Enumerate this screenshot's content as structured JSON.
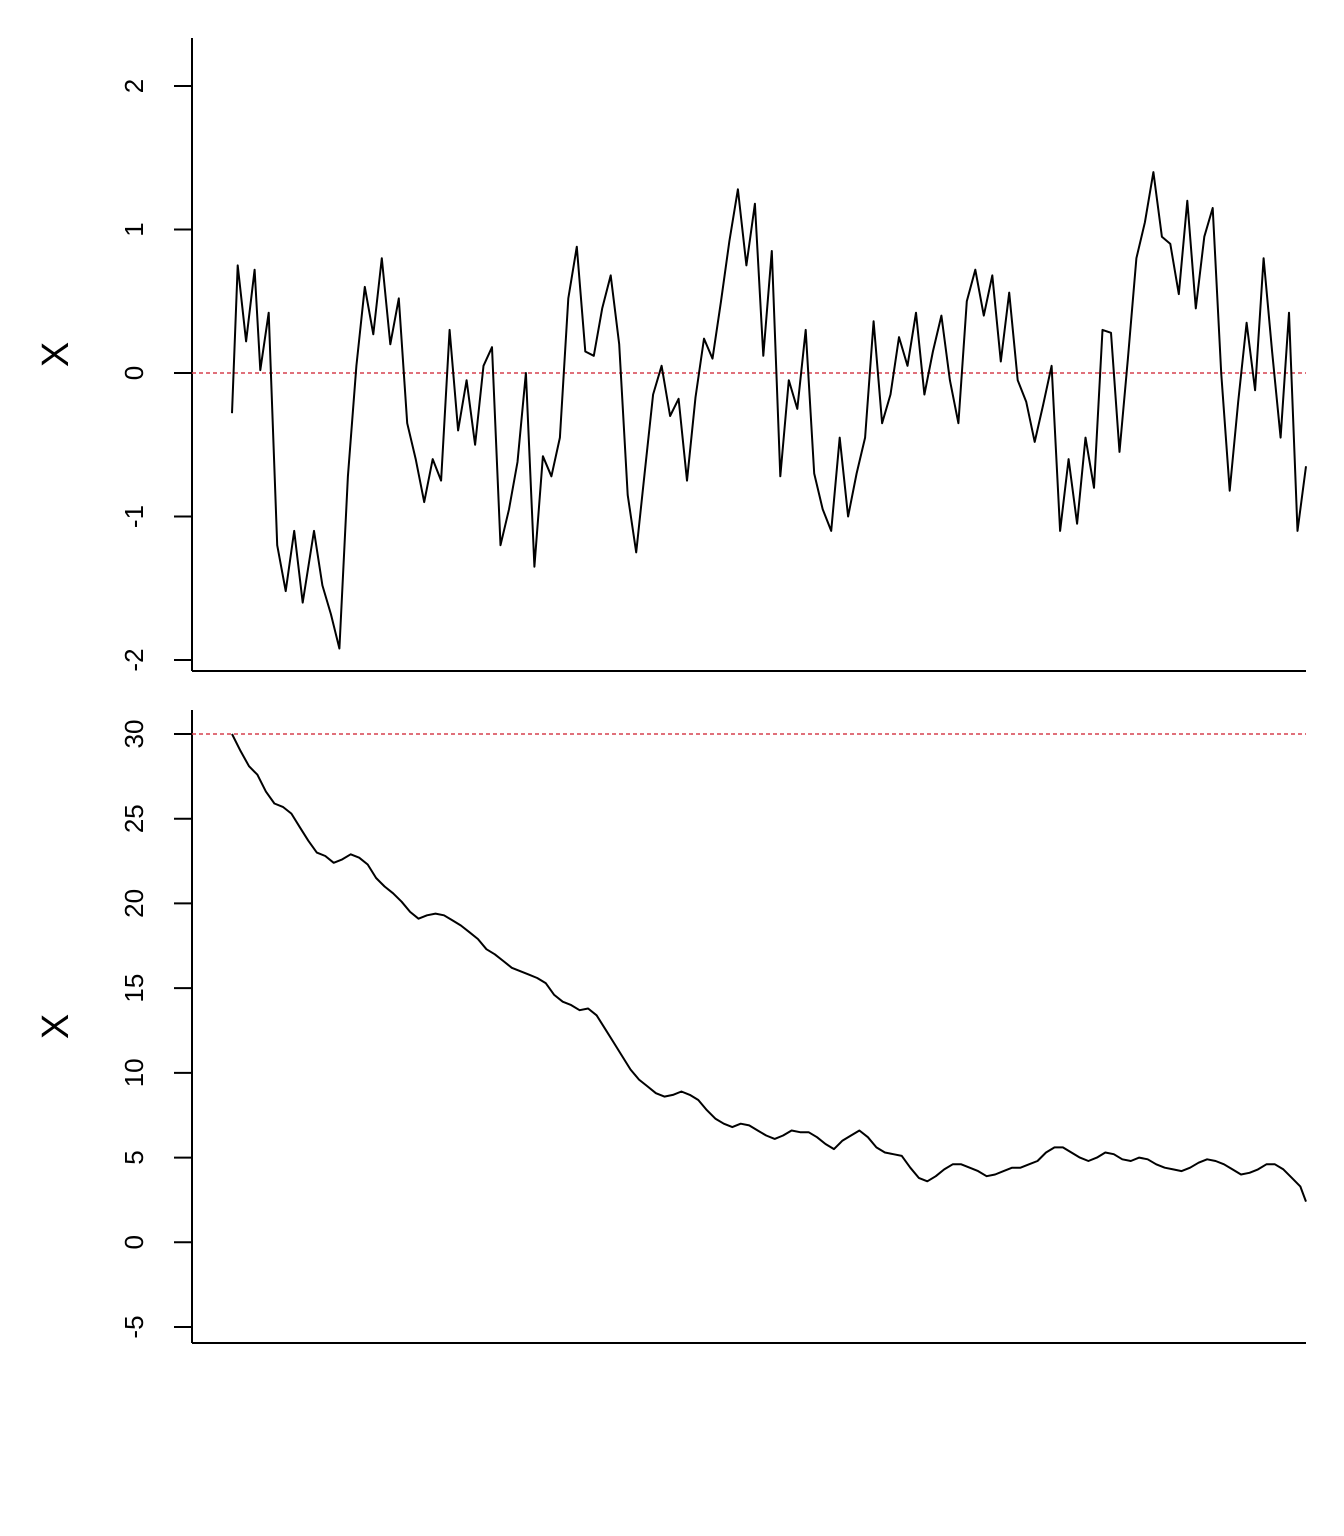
{
  "chart_data": [
    {
      "type": "line",
      "title": "",
      "xlabel": "",
      "ylabel": "X",
      "ylim": [
        -2.1,
        2.3
      ],
      "yticks": [
        -2,
        -1,
        0,
        1,
        2
      ],
      "ytick_labels": [
        "-2",
        "-1",
        "0",
        "1",
        "2"
      ],
      "xlim": [
        0,
        380
      ],
      "reference_line": {
        "y": 0,
        "color": "#d6414f",
        "style": "dashed"
      },
      "grid": false,
      "series": [
        {
          "x": [
            0,
            2,
            5,
            8,
            10,
            13,
            16,
            19,
            22,
            25,
            29,
            32,
            35,
            38,
            41,
            44,
            47,
            50,
            53,
            56,
            59,
            62,
            65,
            68,
            71,
            74,
            77,
            80,
            83,
            86,
            89,
            92,
            95,
            98,
            101,
            104,
            107,
            110,
            113,
            116,
            119,
            122,
            125,
            128,
            131,
            134,
            137,
            140,
            143,
            146,
            149,
            152,
            155,
            158,
            161,
            164,
            167,
            170,
            173,
            176,
            179,
            182,
            185,
            188,
            191,
            194,
            197,
            200,
            203,
            206,
            209,
            212,
            215,
            218,
            221,
            224,
            227,
            230,
            233,
            236,
            239,
            242,
            245,
            248,
            251,
            254,
            257,
            260,
            263,
            266,
            269,
            272,
            275,
            278,
            281,
            284,
            287,
            290,
            293,
            296,
            299,
            302,
            305,
            308,
            311,
            314,
            317,
            320,
            323,
            326,
            329,
            332,
            335,
            338,
            341,
            344,
            347,
            350,
            353,
            356,
            359,
            362,
            365,
            368,
            371,
            374,
            377,
            380
          ],
          "y": [
            -0.28,
            0.75,
            0.22,
            0.72,
            0.02,
            0.42,
            -1.2,
            -1.52,
            -1.1,
            -1.6,
            -1.1,
            -1.48,
            -1.68,
            -1.92,
            -0.72,
            0.05,
            0.6,
            0.27,
            0.8,
            0.2,
            0.52,
            -0.35,
            -0.6,
            -0.9,
            -0.6,
            -0.75,
            0.3,
            -0.4,
            -0.05,
            -0.5,
            0.05,
            0.18,
            -1.2,
            -0.95,
            -0.62,
            0.0,
            -1.35,
            -0.58,
            -0.72,
            -0.45,
            0.52,
            0.88,
            0.15,
            0.12,
            0.45,
            0.68,
            0.2,
            -0.85,
            -1.25,
            -0.7,
            -0.15,
            0.05,
            -0.3,
            -0.18,
            -0.75,
            -0.17,
            0.24,
            0.1,
            0.5,
            0.92,
            1.28,
            0.75,
            1.18,
            0.12,
            0.85,
            -0.72,
            -0.05,
            -0.25,
            0.3,
            -0.7,
            -0.95,
            -1.1,
            -0.45,
            -1.0,
            -0.7,
            -0.45,
            0.36,
            -0.35,
            -0.15,
            0.25,
            0.05,
            0.42,
            -0.15,
            0.15,
            0.4,
            -0.05,
            -0.35,
            0.5,
            0.72,
            0.4,
            0.68,
            0.08,
            0.56,
            -0.05,
            -0.2,
            -0.48,
            -0.22,
            0.05,
            -1.1,
            -0.6,
            -1.05,
            -0.45,
            -0.8,
            0.3,
            0.28,
            -0.55,
            0.1,
            0.8,
            1.05,
            1.4,
            0.95,
            0.9,
            0.55,
            1.2,
            0.45,
            0.95,
            1.15,
            0.0,
            -0.82,
            -0.2,
            0.35,
            -0.12,
            0.8,
            0.15,
            -0.45,
            0.42,
            -1.1,
            -0.65
          ]
        }
      ]
    },
    {
      "type": "line",
      "title": "",
      "xlabel": "",
      "ylabel": "X",
      "ylim": [
        -5.5,
        31.5
      ],
      "yticks": [
        -5,
        0,
        5,
        10,
        15,
        20,
        25,
        30
      ],
      "ytick_labels": [
        "-5",
        "0",
        "5",
        "10",
        "15",
        "20",
        "25",
        "30"
      ],
      "xlim": [
        0,
        380
      ],
      "reference_line": {
        "y": 30,
        "color": "#d6414f",
        "style": "dashed"
      },
      "grid": false,
      "series": [
        {
          "x": [
            0,
            3,
            6,
            9,
            12,
            15,
            18,
            21,
            24,
            27,
            30,
            33,
            36,
            39,
            42,
            45,
            48,
            51,
            54,
            57,
            60,
            63,
            66,
            69,
            72,
            75,
            78,
            81,
            84,
            87,
            90,
            93,
            96,
            99,
            102,
            105,
            108,
            111,
            114,
            117,
            120,
            123,
            126,
            129,
            132,
            135,
            138,
            141,
            144,
            147,
            150,
            153,
            156,
            159,
            162,
            165,
            168,
            171,
            174,
            177,
            180,
            183,
            186,
            189,
            192,
            195,
            198,
            201,
            204,
            207,
            210,
            213,
            216,
            219,
            222,
            225,
            228,
            231,
            234,
            237,
            240,
            243,
            246,
            249,
            252,
            255,
            258,
            261,
            264,
            267,
            270,
            273,
            276,
            279,
            282,
            285,
            288,
            291,
            294,
            297,
            300,
            303,
            306,
            309,
            312,
            315,
            318,
            321,
            324,
            327,
            330,
            333,
            336,
            339,
            342,
            345,
            348,
            351,
            354,
            357,
            360,
            363,
            366,
            369,
            372,
            375,
            378,
            380
          ],
          "y": [
            30.0,
            29.0,
            28.1,
            27.6,
            26.6,
            25.9,
            25.7,
            25.3,
            24.5,
            23.7,
            23.0,
            22.8,
            22.4,
            22.6,
            22.9,
            22.7,
            22.3,
            21.5,
            21.0,
            20.6,
            20.1,
            19.5,
            19.1,
            19.3,
            19.4,
            19.3,
            19.0,
            18.7,
            18.3,
            17.9,
            17.3,
            17.0,
            16.6,
            16.2,
            16.0,
            15.8,
            15.6,
            15.3,
            14.6,
            14.2,
            14.0,
            13.7,
            13.8,
            13.4,
            12.6,
            11.8,
            11.0,
            10.2,
            9.6,
            9.2,
            8.8,
            8.6,
            8.7,
            8.9,
            8.7,
            8.4,
            7.8,
            7.3,
            7.0,
            6.8,
            7.0,
            6.9,
            6.6,
            6.3,
            6.1,
            6.3,
            6.6,
            6.5,
            6.5,
            6.2,
            5.8,
            5.5,
            6.0,
            6.3,
            6.6,
            6.2,
            5.6,
            5.3,
            5.2,
            5.1,
            4.4,
            3.8,
            3.6,
            3.9,
            4.3,
            4.6,
            4.6,
            4.4,
            4.2,
            3.9,
            4.0,
            4.2,
            4.4,
            4.4,
            4.6,
            4.8,
            5.3,
            5.6,
            5.6,
            5.3,
            5.0,
            4.8,
            5.0,
            5.3,
            5.2,
            4.9,
            4.8,
            5.0,
            4.9,
            4.6,
            4.4,
            4.3,
            4.2,
            4.4,
            4.7,
            4.9,
            4.8,
            4.6,
            4.3,
            4.0,
            4.1,
            4.3,
            4.6,
            4.6,
            4.3,
            3.8,
            3.3,
            2.4
          ]
        }
      ]
    }
  ]
}
